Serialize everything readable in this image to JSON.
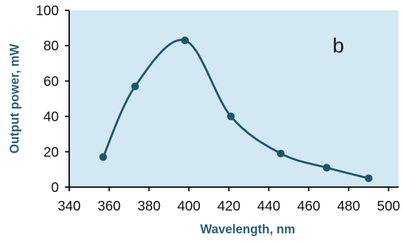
{
  "chart_data": {
    "type": "line",
    "panel_label": "b",
    "xlabel": "Wavelength, nm",
    "ylabel": "Output power, mW",
    "xlim": [
      340,
      505
    ],
    "ylim": [
      0,
      100
    ],
    "x_ticks": [
      340,
      360,
      380,
      400,
      420,
      440,
      460,
      480,
      500
    ],
    "y_ticks": [
      0,
      20,
      40,
      60,
      80,
      100
    ],
    "grid": false,
    "smooth": true,
    "background_color": "#d2e8f2",
    "line_color": "#1d5568",
    "marker_color": "#1d5568",
    "axis_title_color": "#2c5f77",
    "series": [
      {
        "x": [
          357,
          373,
          398,
          421,
          446,
          469,
          490
        ],
        "y": [
          17,
          57,
          83,
          40,
          19,
          11,
          5
        ]
      }
    ]
  }
}
